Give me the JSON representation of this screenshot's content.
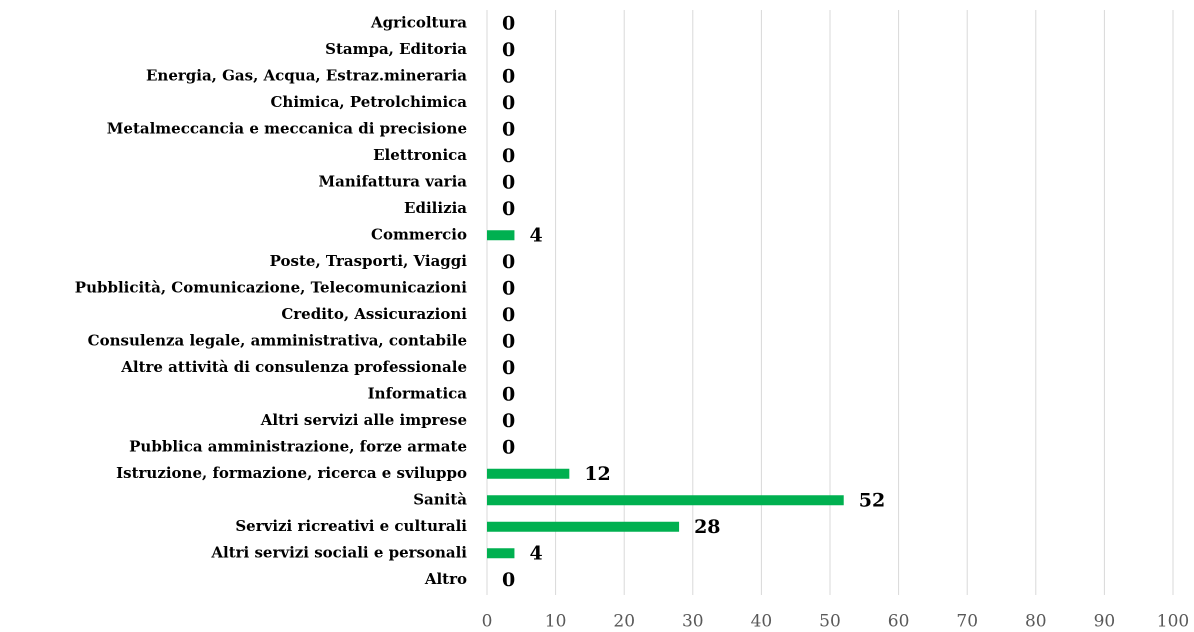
{
  "chart_data": {
    "type": "hbar",
    "categories": [
      "Agricoltura",
      "Stampa, Editoria",
      "Energia, Gas, Acqua, Estraz.mineraria",
      "Chimica, Petrolchimica",
      "Metalmeccancia e meccanica di precisione",
      "Elettronica",
      "Manifattura varia",
      "Edilizia",
      "Commercio",
      "Poste, Trasporti, Viaggi",
      "Pubblicità, Comunicazione, Telecomunicazioni",
      "Credito, Assicurazioni",
      "Consulenza legale, amministrativa, contabile",
      "Altre attività di consulenza professionale",
      "Informatica",
      "Altri servizi alle imprese",
      "Pubblica amministrazione, forze armate",
      "Istruzione, formazione, ricerca e sviluppo",
      "Sanità",
      "Servizi ricreativi e culturali",
      "Altri servizi sociali e personali",
      "Altro"
    ],
    "values": [
      0,
      0,
      0,
      0,
      0,
      0,
      0,
      0,
      4,
      0,
      0,
      0,
      0,
      0,
      0,
      0,
      0,
      12,
      52,
      28,
      4,
      0
    ],
    "color": "#00b050",
    "xlim": [
      0,
      100
    ],
    "xticks": [
      0,
      10,
      20,
      30,
      40,
      50,
      60,
      70,
      80,
      90,
      100
    ],
    "grid": true
  }
}
